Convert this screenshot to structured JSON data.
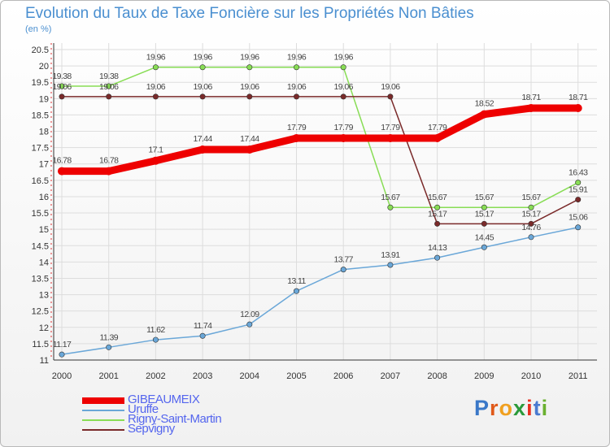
{
  "chart_data": {
    "type": "line",
    "title": "Evolution du Taux de Taxe Foncière sur les Propriétés Non Bâties",
    "ylabel": "(en %)",
    "xlabel": "",
    "ylim": [
      11,
      20.5
    ],
    "ystep": 0.5,
    "categories": [
      "2000",
      "2001",
      "2002",
      "2003",
      "2004",
      "2005",
      "2006",
      "2007",
      "2008",
      "2009",
      "2010",
      "2011"
    ],
    "series": [
      {
        "name": "GIBEAUMEIX",
        "color": "#ee0000",
        "values": [
          16.78,
          16.78,
          17.1,
          17.44,
          17.44,
          17.79,
          17.79,
          17.79,
          17.79,
          18.52,
          18.71,
          18.71
        ],
        "labels": [
          "16.78",
          "16.78",
          "17.1",
          "17.44",
          "17.44",
          "17.79",
          "17.79",
          "17.79",
          "17.79",
          "18.52",
          "18.71",
          "18.71"
        ]
      },
      {
        "name": "Uruffe",
        "color": "#6aa7d8",
        "values": [
          11.17,
          11.39,
          11.62,
          11.74,
          12.09,
          13.11,
          13.77,
          13.91,
          14.13,
          14.45,
          14.76,
          15.06
        ],
        "labels": [
          "11.17",
          "11.39",
          "11.62",
          "11.74",
          "12.09",
          "13.11",
          "13.77",
          "13.91",
          "14.13",
          "14.45",
          "14.76",
          "15.06"
        ]
      },
      {
        "name": "Rigny-Saint-Martin",
        "color": "#88dd55",
        "values": [
          19.38,
          19.38,
          19.96,
          19.96,
          19.96,
          19.96,
          19.96,
          15.67,
          15.67,
          15.67,
          15.67,
          16.43
        ],
        "labels": [
          "19.38",
          "19.38",
          "19.96",
          "19.96",
          "19.96",
          "19.96",
          "19.96",
          "15.67",
          "15.67",
          "15.67",
          "15.67",
          "16.43"
        ]
      },
      {
        "name": "Sepvigny",
        "color": "#7a2a2a",
        "values": [
          19.06,
          19.06,
          19.06,
          19.06,
          19.06,
          19.06,
          19.06,
          19.06,
          15.17,
          15.17,
          15.17,
          15.91
        ],
        "labels": [
          "19.06",
          "19.06",
          "19.06",
          "19.06",
          "19.06",
          "19.06",
          "19.06",
          "19.06",
          "15.17",
          "15.17",
          "15.17",
          "15.91"
        ]
      }
    ]
  },
  "logo": {
    "text": "Proxiti"
  }
}
